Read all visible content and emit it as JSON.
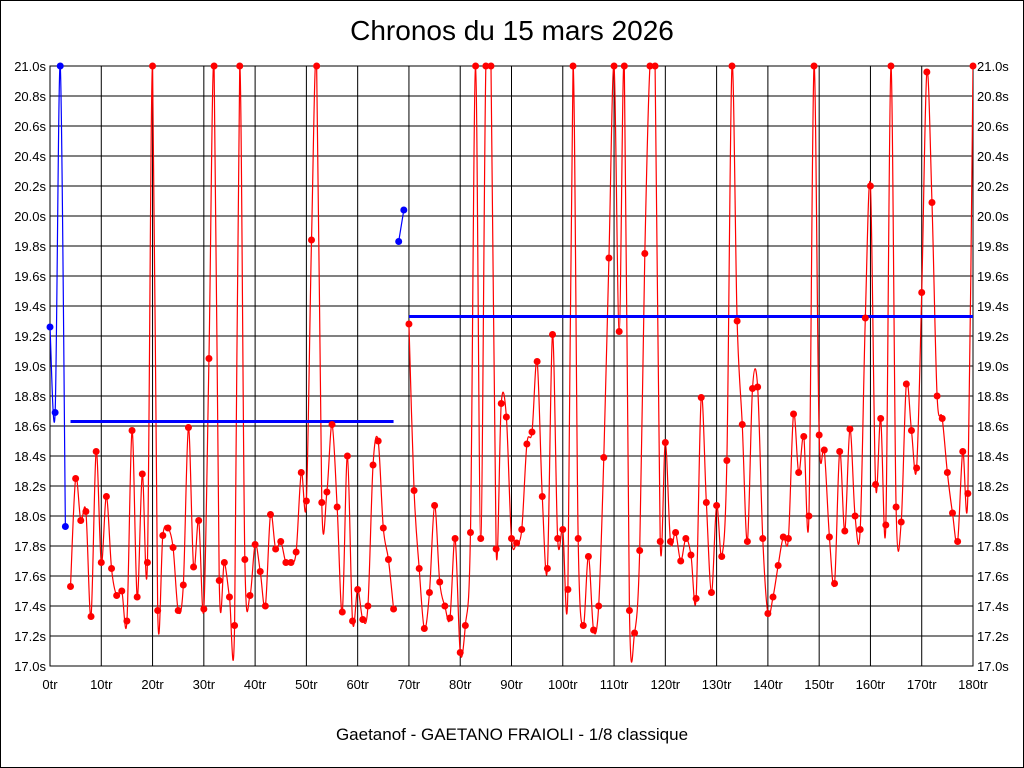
{
  "chart_data": {
    "type": "line",
    "title": "Chronos du 15 mars 2026",
    "subtitle": "Gaetanof - GAETANO FRAIOLI - 1/8 classique",
    "xlabel": "",
    "ylabel": "",
    "xlim": [
      0,
      180
    ],
    "ylim": [
      17.0,
      21.0
    ],
    "grid": true,
    "x_ticks": [
      "0tr",
      "10tr",
      "20tr",
      "30tr",
      "40tr",
      "50tr",
      "60tr",
      "70tr",
      "80tr",
      "90tr",
      "100tr",
      "110tr",
      "120tr",
      "130tr",
      "140tr",
      "150tr",
      "160tr",
      "170tr",
      "180tr"
    ],
    "y_ticks": [
      "17.0s",
      "17.2s",
      "17.4s",
      "17.6s",
      "17.8s",
      "18.0s",
      "18.2s",
      "18.4s",
      "18.6s",
      "18.8s",
      "19.0s",
      "19.2s",
      "19.4s",
      "19.6s",
      "19.8s",
      "20.0s",
      "20.2s",
      "20.4s",
      "20.6s",
      "20.8s",
      "21.0s"
    ],
    "series": [
      {
        "name": "segment-1",
        "color": "#0000ff",
        "start": 0,
        "values": [
          19.26,
          18.69,
          21.0,
          17.93
        ]
      },
      {
        "name": "segment-2",
        "color": "#ff0000",
        "start": 4,
        "values": [
          17.53,
          18.25,
          17.97,
          18.03,
          17.33,
          18.43,
          17.69,
          18.13,
          17.65,
          17.47,
          17.5,
          17.3,
          18.57,
          17.46,
          18.28,
          17.69,
          21.0,
          17.37,
          17.87,
          17.92,
          17.79,
          17.37,
          17.54,
          18.59,
          17.66,
          17.97,
          17.38,
          19.05,
          21.0,
          17.57,
          17.69,
          17.46,
          17.27,
          21.0,
          17.71,
          17.47,
          17.81,
          17.63,
          17.4,
          18.01,
          17.78,
          17.83,
          17.69,
          17.69,
          17.76,
          18.29,
          18.1,
          19.84,
          21.0,
          18.09,
          18.16,
          18.61,
          18.06,
          17.36,
          18.4,
          17.3,
          17.51,
          17.31,
          17.4,
          18.34,
          18.5,
          17.92,
          17.71,
          17.38
        ]
      },
      {
        "name": "segment-3",
        "color": "#0000ff",
        "start": 68,
        "values": [
          19.83,
          20.04
        ]
      },
      {
        "name": "segment-4",
        "color": "#ff0000",
        "start": 70,
        "values": [
          19.28,
          18.17,
          17.65,
          17.25,
          17.49,
          18.07,
          17.56,
          17.4,
          17.32,
          17.85,
          17.09,
          17.27,
          17.89,
          21.0,
          17.85,
          21.0,
          21.0,
          17.78,
          18.75,
          18.66,
          17.85,
          17.82,
          17.91,
          18.48,
          18.56,
          19.03,
          18.13,
          17.65,
          19.21,
          17.85,
          17.91,
          17.51,
          21.0,
          17.85,
          17.27,
          17.73,
          17.24,
          17.4,
          18.39,
          19.72,
          21.0,
          19.23,
          21.0,
          17.37,
          17.22,
          17.77,
          19.75,
          21.0,
          21.0,
          17.83,
          18.49,
          17.83,
          17.89,
          17.7,
          17.85,
          17.74,
          17.45,
          18.79,
          18.09,
          17.49,
          18.07,
          17.73,
          18.37,
          21.0,
          19.3,
          18.61,
          17.83,
          18.85,
          18.86,
          17.85,
          17.35,
          17.46,
          17.67,
          17.86,
          17.85,
          18.68,
          18.29,
          18.53,
          18.0,
          21.0,
          18.54,
          18.44,
          17.86,
          17.55,
          18.43,
          17.9,
          18.58,
          18.0,
          17.91,
          19.32,
          20.2,
          18.21,
          18.65,
          17.94,
          21.0,
          18.06,
          17.96,
          18.88,
          18.57,
          18.32,
          19.49,
          20.96,
          20.09,
          18.8,
          18.65,
          18.29,
          18.02,
          17.83,
          18.43,
          18.15,
          21.0
        ]
      }
    ],
    "mean_lines": [
      {
        "name": "mean-1",
        "color": "#0000ff",
        "x_from": 4,
        "x_to": 67,
        "value": 18.63
      },
      {
        "name": "mean-2",
        "color": "#0000ff",
        "x_from": 70,
        "x_to": 180,
        "value": 19.33
      }
    ]
  }
}
